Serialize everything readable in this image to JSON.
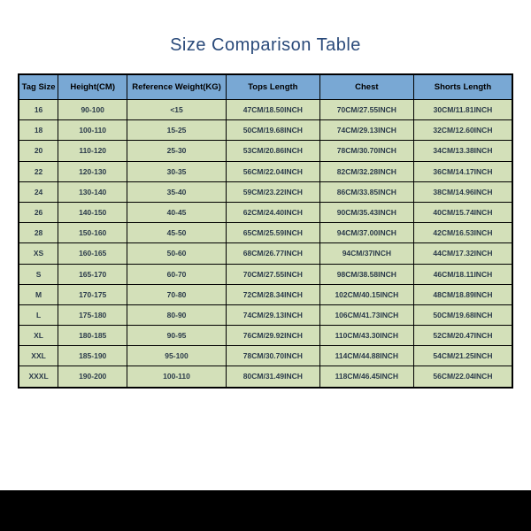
{
  "title": "Size Comparison Table",
  "table": {
    "columns": [
      "Tag Size",
      "Height(CM)",
      "Reference Weight(KG)",
      "Tops Length",
      "Chest",
      "Shorts Length"
    ],
    "rows": [
      [
        "16",
        "90-100",
        "<15",
        "47CM/18.50INCH",
        "70CM/27.55INCH",
        "30CM/11.81INCH"
      ],
      [
        "18",
        "100-110",
        "15-25",
        "50CM/19.68INCH",
        "74CM/29.13INCH",
        "32CM/12.60INCH"
      ],
      [
        "20",
        "110-120",
        "25-30",
        "53CM/20.86INCH",
        "78CM/30.70INCH",
        "34CM/13.38INCH"
      ],
      [
        "22",
        "120-130",
        "30-35",
        "56CM/22.04INCH",
        "82CM/32.28INCH",
        "36CM/14.17INCH"
      ],
      [
        "24",
        "130-140",
        "35-40",
        "59CM/23.22INCH",
        "86CM/33.85INCH",
        "38CM/14.96INCH"
      ],
      [
        "26",
        "140-150",
        "40-45",
        "62CM/24.40INCH",
        "90CM/35.43INCH",
        "40CM/15.74INCH"
      ],
      [
        "28",
        "150-160",
        "45-50",
        "65CM/25.59INCH",
        "94CM/37.00INCH",
        "42CM/16.53INCH"
      ],
      [
        "XS",
        "160-165",
        "50-60",
        "68CM/26.77INCH",
        "94CM/37INCH",
        "44CM/17.32INCH"
      ],
      [
        "S",
        "165-170",
        "60-70",
        "70CM/27.55INCH",
        "98CM/38.58INCH",
        "46CM/18.11INCH"
      ],
      [
        "M",
        "170-175",
        "70-80",
        "72CM/28.34INCH",
        "102CM/40.15INCH",
        "48CM/18.89INCH"
      ],
      [
        "L",
        "175-180",
        "80-90",
        "74CM/29.13INCH",
        "106CM/41.73INCH",
        "50CM/19.68INCH"
      ],
      [
        "XL",
        "180-185",
        "90-95",
        "76CM/29.92INCH",
        "110CM/43.30INCH",
        "52CM/20.47INCH"
      ],
      [
        "XXL",
        "185-190",
        "95-100",
        "78CM/30.70INCH",
        "114CM/44.88INCH",
        "54CM/21.25INCH"
      ],
      [
        "XXXL",
        "190-200",
        "100-110",
        "80CM/31.49INCH",
        "118CM/46.45INCH",
        "56CM/22.04INCH"
      ]
    ],
    "header_bg": "#79a8d4",
    "cell_bg": "#d3e0b9",
    "border_color": "#000000",
    "title_color": "#2a4a7a"
  }
}
